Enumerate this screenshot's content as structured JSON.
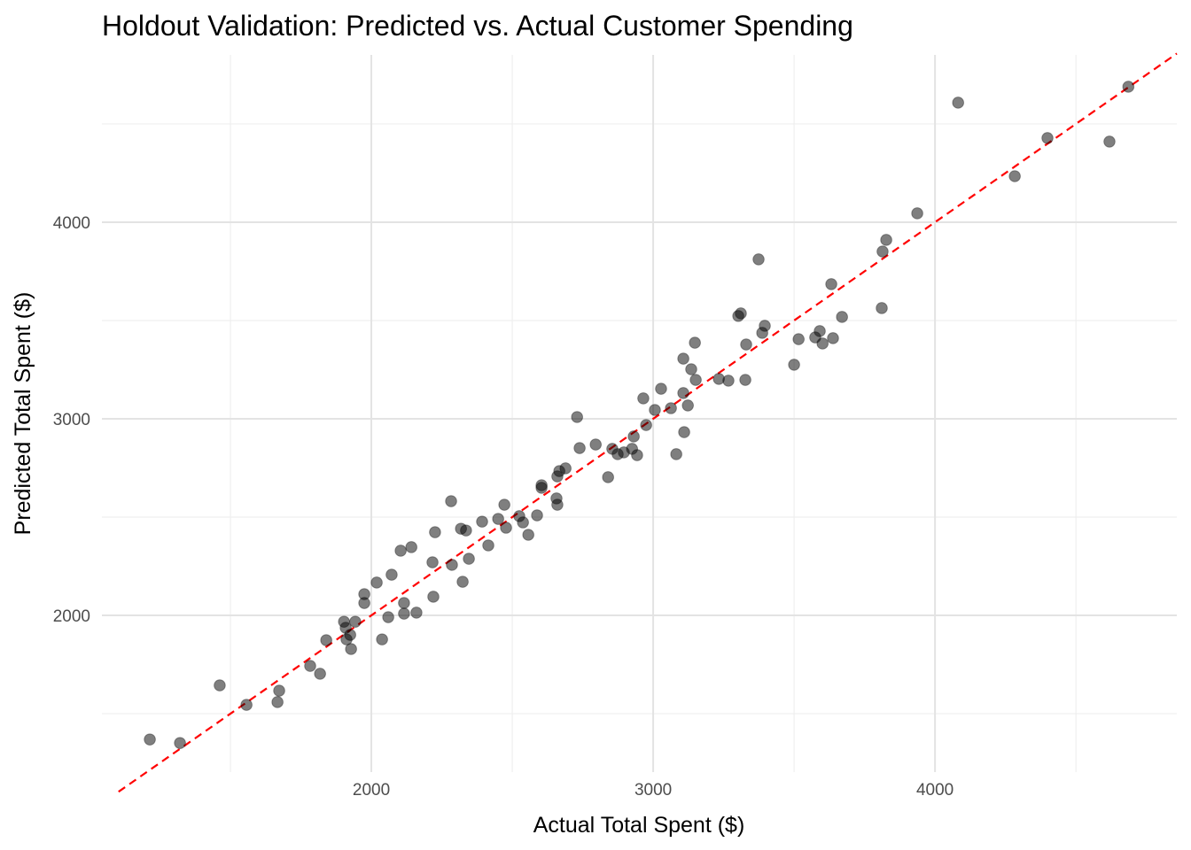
{
  "chart_data": {
    "type": "scatter",
    "title": "Holdout Validation: Predicted vs. Actual Customer Spending",
    "xlabel": "Actual Total Spent ($)",
    "ylabel": "Predicted Total Spent ($)",
    "xlim": [
      1044,
      4858
    ],
    "ylim": [
      1203,
      4851
    ],
    "x_major_ticks": [
      2000,
      3000,
      4000
    ],
    "y_major_ticks": [
      2000,
      3000,
      4000
    ],
    "x_minor_ticks": [
      1500,
      2500,
      3500,
      4500
    ],
    "y_minor_ticks": [
      1500,
      2500,
      3500,
      4500
    ],
    "x_tick_labels": [
      "2000",
      "3000",
      "4000"
    ],
    "y_tick_labels": [
      "2000",
      "3000",
      "4000"
    ],
    "grid": true,
    "reference_line": {
      "type": "y=x",
      "color": "#ff0000",
      "style": "dashed"
    },
    "point_color": "#000000",
    "point_opacity": 0.5,
    "points": [
      [
        1214,
        1369
      ],
      [
        1321,
        1351
      ],
      [
        1462,
        1644
      ],
      [
        1557,
        1545
      ],
      [
        1667,
        1559
      ],
      [
        1673,
        1617
      ],
      [
        1783,
        1743
      ],
      [
        1818,
        1703
      ],
      [
        1840,
        1874
      ],
      [
        1903,
        1968
      ],
      [
        1909,
        1937
      ],
      [
        1912,
        1878
      ],
      [
        1925,
        1901
      ],
      [
        1928,
        1829
      ],
      [
        1943,
        1968
      ],
      [
        1975,
        2108
      ],
      [
        1975,
        2063
      ],
      [
        2019,
        2167
      ],
      [
        2038,
        1878
      ],
      [
        2060,
        1991
      ],
      [
        2072,
        2207
      ],
      [
        2104,
        2329
      ],
      [
        2116,
        2063
      ],
      [
        2116,
        2009
      ],
      [
        2142,
        2347
      ],
      [
        2160,
        2014
      ],
      [
        2217,
        2270
      ],
      [
        2220,
        2095
      ],
      [
        2226,
        2423
      ],
      [
        2283,
        2581
      ],
      [
        2286,
        2257
      ],
      [
        2318,
        2441
      ],
      [
        2324,
        2171
      ],
      [
        2336,
        2432
      ],
      [
        2346,
        2288
      ],
      [
        2393,
        2477
      ],
      [
        2415,
        2356
      ],
      [
        2450,
        2491
      ],
      [
        2472,
        2563
      ],
      [
        2478,
        2446
      ],
      [
        2525,
        2505
      ],
      [
        2538,
        2473
      ],
      [
        2557,
        2410
      ],
      [
        2588,
        2509
      ],
      [
        2604,
        2662
      ],
      [
        2604,
        2649
      ],
      [
        2657,
        2595
      ],
      [
        2660,
        2563
      ],
      [
        2660,
        2707
      ],
      [
        2667,
        2734
      ],
      [
        2689,
        2748
      ],
      [
        2730,
        3009
      ],
      [
        2739,
        2851
      ],
      [
        2796,
        2869
      ],
      [
        2840,
        2703
      ],
      [
        2855,
        2847
      ],
      [
        2874,
        2820
      ],
      [
        2896,
        2829
      ],
      [
        2925,
        2847
      ],
      [
        2931,
        2910
      ],
      [
        2943,
        2815
      ],
      [
        2965,
        3104
      ],
      [
        2975,
        2968
      ],
      [
        3006,
        3045
      ],
      [
        3028,
        3153
      ],
      [
        3063,
        3054
      ],
      [
        3082,
        2820
      ],
      [
        3107,
        3306
      ],
      [
        3107,
        3131
      ],
      [
        3110,
        2932
      ],
      [
        3123,
        3068
      ],
      [
        3135,
        3252
      ],
      [
        3148,
        3387
      ],
      [
        3151,
        3198
      ],
      [
        3233,
        3203
      ],
      [
        3267,
        3194
      ],
      [
        3302,
        3523
      ],
      [
        3311,
        3536
      ],
      [
        3327,
        3198
      ],
      [
        3330,
        3378
      ],
      [
        3374,
        3811
      ],
      [
        3387,
        3437
      ],
      [
        3396,
        3473
      ],
      [
        3500,
        3275
      ],
      [
        3516,
        3405
      ],
      [
        3575,
        3414
      ],
      [
        3591,
        3446
      ],
      [
        3601,
        3383
      ],
      [
        3632,
        3685
      ],
      [
        3638,
        3410
      ],
      [
        3670,
        3518
      ],
      [
        3811,
        3563
      ],
      [
        3814,
        3851
      ],
      [
        3827,
        3910
      ],
      [
        3937,
        4045
      ],
      [
        4082,
        4608
      ],
      [
        4283,
        4234
      ],
      [
        4399,
        4428
      ],
      [
        4619,
        4410
      ],
      [
        4686,
        4689
      ]
    ]
  }
}
